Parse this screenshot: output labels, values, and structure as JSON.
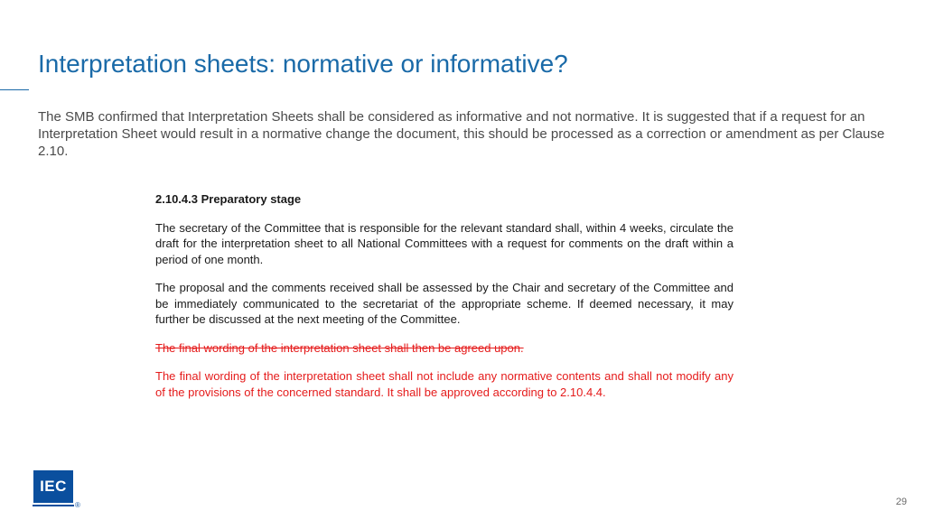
{
  "colors": {
    "title": "#1a6aa8",
    "intro_text": "#4a4a4a",
    "body_text": "#1a1a1a",
    "red_text": "#e51b1b",
    "logo_bg": "#0a4f9e",
    "logo_text": "#ffffff",
    "page_num": "#6b6b6b"
  },
  "typography": {
    "title_fontsize": 28,
    "intro_fontsize": 15,
    "body_fontsize": 13,
    "page_num_fontsize": 11
  },
  "title": "Interpretation sheets: normative or informative?",
  "intro": "The SMB confirmed that Interpretation Sheets shall be considered as informative and not normative. It is suggested that if a request for an Interpretation Sheet would result in a normative change the document, this should be processed as a correction or amendment as per Clause 2.10.",
  "section_head": "2.10.4.3 Preparatory stage",
  "para1": "The secretary of the Committee that is responsible for the relevant standard shall, within 4 weeks, circulate the draft for the interpretation sheet to all National Committees with a request for comments on the draft within a period of one month.",
  "para2": "The proposal and the comments received shall be assessed by the Chair and secretary of the Committee and be immediately communicated to the secretariat of the appropriate scheme. If deemed necessary, it may further be discussed at the next meeting of the Committee.",
  "struck_text": "The final wording of the interpretation sheet shall then be agreed upon.",
  "red_para": "The final wording of the interpretation sheet shall not include any normative contents and shall not modify any of the provisions of the concerned standard. It shall be approved according to 2.10.4.4.",
  "logo_text": "IEC",
  "registered": "®",
  "page_number": "29"
}
